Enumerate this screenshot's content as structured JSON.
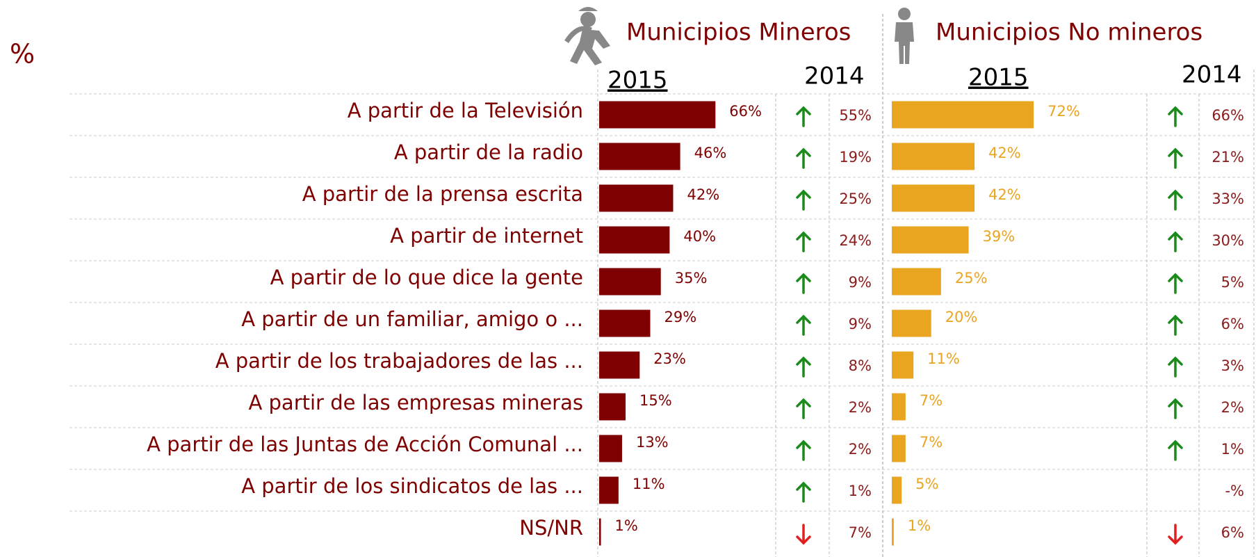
{
  "unit": "%",
  "chart_data": {
    "type": "bar",
    "categories": [
      "A partir de la Televisión",
      "A partir de la radio",
      "A partir de la prensa escrita",
      "A partir de internet",
      "A partir de lo que dice la gente",
      "A partir de un familiar, amigo o ...",
      "A partir de los trabajadores de las ...",
      "A partir de las empresas mineras",
      "A partir de las Juntas de Acción Comunal ...",
      "A partir de los sindicatos de las ...",
      "NS/NR"
    ],
    "panels": [
      {
        "title": "Municipios Mineros",
        "xlim": [
          0,
          100
        ],
        "series": [
          {
            "name": "2015",
            "color": "#7f0000",
            "values": [
              66,
              46,
              42,
              40,
              35,
              29,
              23,
              15,
              13,
              11,
              1
            ],
            "value_labels": [
              "66%",
              "46%",
              "42%",
              "40%",
              "35%",
              "29%",
              "23%",
              "15%",
              "13%",
              "11%",
              "1%"
            ]
          },
          {
            "name": "2014",
            "values": [
              55,
              19,
              25,
              24,
              9,
              9,
              8,
              2,
              2,
              1,
              7
            ],
            "value_labels": [
              "55%",
              "19%",
              "25%",
              "24%",
              "9%",
              "9%",
              "8%",
              "2%",
              "2%",
              "1%",
              "7%"
            ]
          }
        ]
      },
      {
        "title": "Municipios No mineros",
        "xlim": [
          0,
          100
        ],
        "series": [
          {
            "name": "2015",
            "color": "#e9a420",
            "values": [
              72,
              42,
              42,
              39,
              25,
              20,
              11,
              7,
              7,
              5,
              1
            ],
            "value_labels": [
              "72%",
              "42%",
              "42%",
              "39%",
              "25%",
              "20%",
              "11%",
              "7%",
              "7%",
              "5%",
              "1%"
            ]
          },
          {
            "name": "2014",
            "values": [
              66,
              21,
              33,
              30,
              5,
              6,
              3,
              2,
              1,
              null,
              6
            ],
            "value_labels": [
              "66%",
              "21%",
              "33%",
              "30%",
              "5%",
              "6%",
              "3%",
              "2%",
              "1%",
              "-%",
              "6%"
            ]
          }
        ]
      }
    ]
  }
}
